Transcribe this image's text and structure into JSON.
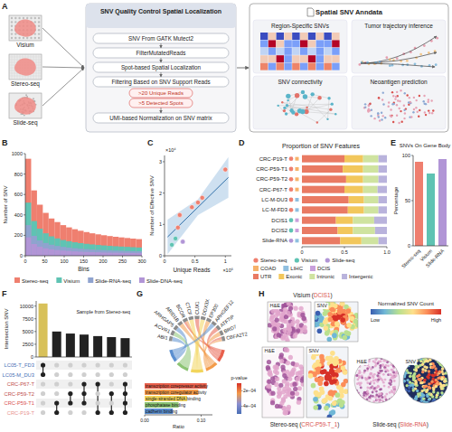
{
  "panel_labels": [
    "A",
    "B",
    "C",
    "D",
    "E",
    "F",
    "G",
    "H"
  ],
  "workflow": {
    "inputs": [
      "Visium",
      "Stereo-seq",
      "Slide-seq"
    ],
    "pipeline_title": "SNV Quality Control Spatial Localization",
    "steps": [
      "SNV From GATK Mutect2",
      "FilterMutatedReads",
      "Spot-based Spatial Localization",
      "Filtering Based on SNV Support Reads",
      "UMI-based Normalization on SNV matrix"
    ],
    "criteria": [
      ">20 Unique Reads",
      ">5 Detected Spots"
    ],
    "output_title": "Spatial SNV Anndata",
    "outputs": [
      "Region-Specific SNVs",
      "Tumor trajectory inference",
      "SNV connectivity",
      "Neoantigen prediction"
    ]
  },
  "chart_data": [
    {
      "type": "histogram",
      "xlabel": "Bins",
      "ylabel": "Number of SNV",
      "bins": [
        0,
        15,
        30,
        45,
        60,
        75,
        90,
        105,
        120,
        135,
        150,
        165,
        180,
        195,
        210,
        225,
        240,
        255,
        270,
        285,
        300
      ],
      "series": [
        {
          "name": "Stereo-seq",
          "color": "#ef7f6f",
          "values": [
            950,
            640,
            500,
            420,
            365,
            330,
            300,
            278,
            260,
            245,
            232,
            220,
            210,
            201,
            193,
            186,
            180,
            174,
            168,
            163
          ]
        },
        {
          "name": "Visium",
          "color": "#5fc3b3",
          "values": [
            520,
            340,
            265,
            220,
            190,
            170,
            154,
            142,
            132,
            124,
            117,
            111,
            106,
            101,
            97,
            93,
            90,
            87,
            84,
            81
          ]
        },
        {
          "name": "Slide-RNA-seq",
          "color": "#8fa3cf",
          "values": [
            300,
            195,
            150,
            125,
            108,
            96,
            87,
            80,
            74,
            69,
            65,
            61,
            58,
            55,
            53,
            51,
            49,
            47,
            45,
            44
          ]
        },
        {
          "name": "Slide-DNA-seq",
          "color": "#b195d6",
          "values": [
            180,
            115,
            88,
            73,
            63,
            56,
            51,
            47,
            43,
            40,
            38,
            36,
            34,
            32,
            31,
            30,
            29,
            28,
            27,
            26
          ]
        }
      ],
      "xlim": [
        0,
        300
      ],
      "ylim": [
        0,
        1000
      ],
      "xticks": [
        0,
        50,
        100,
        150,
        200,
        250,
        300
      ],
      "yticks": [
        0,
        200,
        400,
        600,
        800,
        1000
      ],
      "legend": "bottom"
    },
    {
      "type": "scatter",
      "xlabel": "Unique Reads",
      "ylabel": "Number of Effective SNV",
      "x_multiplier": "×10⁶",
      "y_multiplier": "×10⁴",
      "x": [
        0.12,
        0.18,
        0.22,
        0.25,
        0.3,
        0.45,
        0.55,
        0.62,
        1.0
      ],
      "values": [
        0.35,
        0.55,
        0.9,
        1.3,
        0.45,
        1.55,
        1.7,
        1.85,
        2.75
      ],
      "colors": [
        "#5fc3b3",
        "#5fc3b3",
        "#ef7f6f",
        "#ef7f6f",
        "#b195d6",
        "#ef7f6f",
        "#ef7f6f",
        "#ef7f6f",
        "#ef7f6f"
      ],
      "fit": {
        "x": [
          0.05,
          0.55,
          1.05
        ],
        "values": [
          0.6,
          1.55,
          2.5
        ],
        "lower": [
          0.05,
          1.3,
          1.85
        ],
        "upper": [
          1.15,
          1.8,
          3.15
        ]
      },
      "xlim": [
        0,
        1.1
      ],
      "ylim": [
        0,
        3.2
      ],
      "xticks": [
        0,
        0.5,
        1
      ],
      "yticks": [
        0,
        1,
        2,
        3
      ]
    },
    {
      "type": "bar",
      "orientation": "horizontal",
      "stacked": true,
      "title": "Proportion of SNV Features",
      "categories": [
        "CRC-P19-T",
        "CRC-P59-T1",
        "CRC-P59-T2",
        "CRC-P67-T",
        "LC-M-DU3",
        "LC-M-FD3",
        "DCIS1",
        "DCIS2",
        "Slide-RNA"
      ],
      "platforms": [
        "Stereo-seq",
        "Stereo-seq",
        "Stereo-seq",
        "Stereo-seq",
        "Stereo-seq",
        "Stereo-seq",
        "Visium",
        "Visium",
        "Slide-seq"
      ],
      "tissues": [
        "COAD",
        "COAD",
        "COAD",
        "COAD",
        "LIHC",
        "LIHC",
        "DCIS",
        "DCIS",
        "LIHC"
      ],
      "platform_legend": [
        {
          "name": "Stereo-seq",
          "color": "#ef7f6f"
        },
        {
          "name": "Visium",
          "color": "#5fc3b3"
        },
        {
          "name": "Slide-seq",
          "color": "#b195d6"
        }
      ],
      "tissue_legend": [
        {
          "name": "COAD",
          "color": "#f6b26b"
        },
        {
          "name": "LIHC",
          "color": "#8fbfe0"
        },
        {
          "name": "DCIS",
          "color": "#c9a0dc"
        }
      ],
      "series": [
        {
          "name": "UTR",
          "color": "#e97a63",
          "values": [
            0.5,
            0.48,
            0.52,
            0.5,
            0.55,
            0.54,
            0.4,
            0.42,
            0.45
          ]
        },
        {
          "name": "Exonic",
          "color": "#f2c75c",
          "values": [
            0.22,
            0.24,
            0.2,
            0.22,
            0.18,
            0.19,
            0.2,
            0.18,
            0.25
          ]
        },
        {
          "name": "Intronic",
          "color": "#cfe3a0",
          "values": [
            0.18,
            0.18,
            0.18,
            0.17,
            0.17,
            0.17,
            0.25,
            0.26,
            0.2
          ]
        },
        {
          "name": "Intergenic",
          "color": "#b9b3dc",
          "values": [
            0.1,
            0.1,
            0.1,
            0.11,
            0.1,
            0.1,
            0.15,
            0.14,
            0.1
          ]
        }
      ],
      "xlim": [
        0,
        1
      ],
      "xticks": [
        0,
        0.5,
        {
          "value": 1,
          "label": "1.0"
        }
      ],
      "legend": "bottom"
    },
    {
      "type": "bar",
      "title": "SNVs On Gene Body",
      "ylabel": "Percentage",
      "categories": [
        "Stereo-seq",
        "Visium",
        "Slide-RNA"
      ],
      "values": [
        93,
        80,
        96
      ],
      "colors": [
        "#ef7f6f",
        "#5fc3b3",
        "#b195d6"
      ],
      "ylim": [
        0,
        100
      ],
      "yticks": [
        0,
        50,
        100
      ]
    },
    {
      "type": "upset",
      "ylabel": "Intersection SNV",
      "annotation": "Sample from Stereo-seq",
      "values": [
        10500,
        5000,
        4600,
        4400,
        4100,
        3900,
        3700
      ],
      "colors": [
        "#d8c15a",
        "#222222",
        "#222222",
        "#222222",
        "#222222",
        "#222222",
        "#222222"
      ],
      "sets": [
        "LC05-T_FD3",
        "LC05-M_DU3",
        "CRC-P67-T",
        "CRC-P59-T2",
        "CRC-P59-T1",
        "CRC-P19-T"
      ],
      "set_colors": [
        "#4a6fb5",
        "#4a6fb5",
        "#c0504d",
        "#c0504d",
        "#d9534f",
        "#e8938f"
      ],
      "memberships": [
        [
          0,
          1
        ],
        [
          4,
          5
        ],
        [
          3,
          4
        ],
        [
          2,
          3,
          4
        ],
        [
          2,
          5
        ],
        [
          3,
          5
        ],
        [
          2,
          3,
          4,
          5
        ]
      ],
      "ylim": [
        0,
        11000
      ],
      "yticks": [
        0,
        2500,
        5000,
        7500,
        10000
      ]
    }
  ],
  "chord": {
    "type": "chord",
    "genes": [
      "ABI1",
      "ACVR1",
      "ARHGAP5",
      "ARID1B",
      "BCOR",
      "CTCF",
      "CUX1",
      "DDX3X",
      "EP300",
      "ARHGEF12",
      "ATF7IP",
      "BRD7",
      "CBFA2T2"
    ],
    "terms": [
      "transcription corepressor activity",
      "transcription coregulator activity",
      "single-stranded DNA binding",
      "phosphatase binding",
      "cadherin binding"
    ],
    "colors": [
      "#e8604c",
      "#f39b4a",
      "#f2d55c",
      "#8cc474",
      "#5b8fd0"
    ],
    "ratio": [
      0.11,
      0.095,
      0.075,
      0.06,
      0.05
    ],
    "links": [
      [
        0,
        4
      ],
      [
        1,
        3
      ],
      [
        2,
        4
      ],
      [
        3,
        1
      ],
      [
        4,
        0
      ],
      [
        4,
        1
      ],
      [
        5,
        2
      ],
      [
        6,
        0
      ],
      [
        7,
        2
      ],
      [
        8,
        1
      ],
      [
        9,
        4
      ],
      [
        10,
        0
      ],
      [
        11,
        1
      ],
      [
        12,
        0
      ],
      [
        12,
        1
      ]
    ],
    "xlabel": "Ratio",
    "xlim": [
      0,
      0.12
    ],
    "xticks": [
      {
        "value": 0,
        "label": "0.00"
      },
      {
        "value": 0.1,
        "label": "0.10"
      }
    ],
    "colorbar": {
      "title": "p-value",
      "lim": [
        0.0001,
        0.0005
      ],
      "ticks": [
        {
          "value": 0.0002,
          "label": "2e−04"
        },
        {
          "value": 0.0004,
          "label": "4e−04"
        }
      ]
    }
  },
  "spatial_maps": {
    "legend_title": "Normalized SNV Count",
    "low": "Low",
    "high": "High",
    "rows": [
      {
        "title_parts": [
          "Visium (",
          "DCIS1",
          ")"
        ],
        "images": [
          "H&E",
          "SNV"
        ]
      },
      {
        "title_parts": [
          "Stereo-seq (",
          "CRC-P59-T_1",
          ")"
        ],
        "images": [
          "H&E",
          "SNV"
        ]
      },
      {
        "title_parts": [
          "Slide-seq (",
          "Slide-RNA",
          ")"
        ],
        "images": [
          "H&E",
          "SNV"
        ]
      }
    ]
  }
}
